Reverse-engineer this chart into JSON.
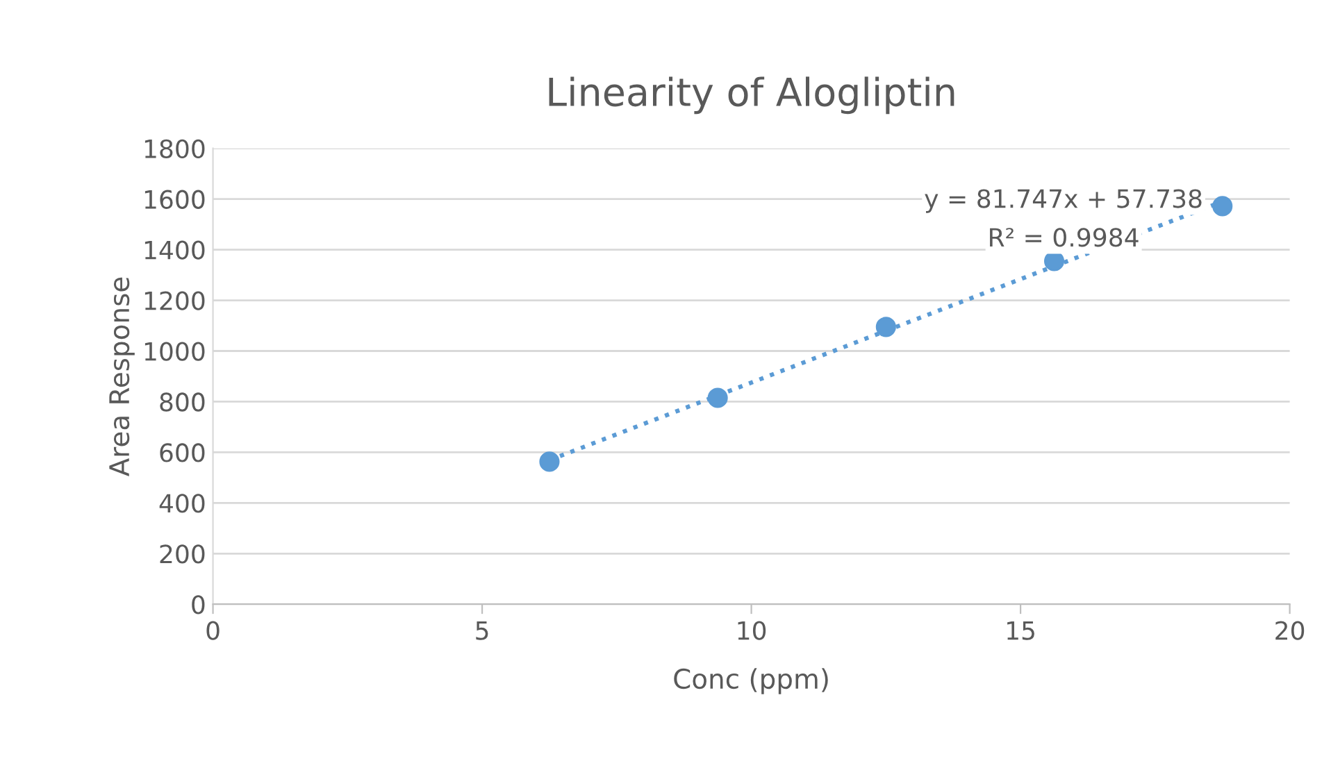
{
  "chart_data": {
    "type": "scatter",
    "title": "Linearity of Alogliptin",
    "xlabel": "Conc (ppm)",
    "ylabel": "Area Response",
    "x": [
      6.25,
      9.375,
      12.5,
      15.625,
      18.75
    ],
    "series": [
      {
        "color": "#5b9bd5",
        "marker": "circle",
        "values": [
          563,
          815,
          1095,
          1355,
          1572
        ]
      },
      {
        "type": "line",
        "color": "#5b9bd5",
        "line_style": "dotted",
        "marker": "none",
        "x": [
          6.25,
          18.75
        ],
        "values": [
          569,
          1590
        ]
      }
    ],
    "annotations": [
      "y = 81.747x + 57.738",
      "R² = 0.9984"
    ],
    "xlim": [
      0,
      20
    ],
    "xticks": [
      0,
      5,
      10,
      15,
      20
    ],
    "ylim": [
      0,
      1800
    ],
    "yticks": [
      0,
      200,
      400,
      600,
      800,
      1000,
      1200,
      1400,
      1600,
      1800
    ],
    "grid": "y"
  }
}
